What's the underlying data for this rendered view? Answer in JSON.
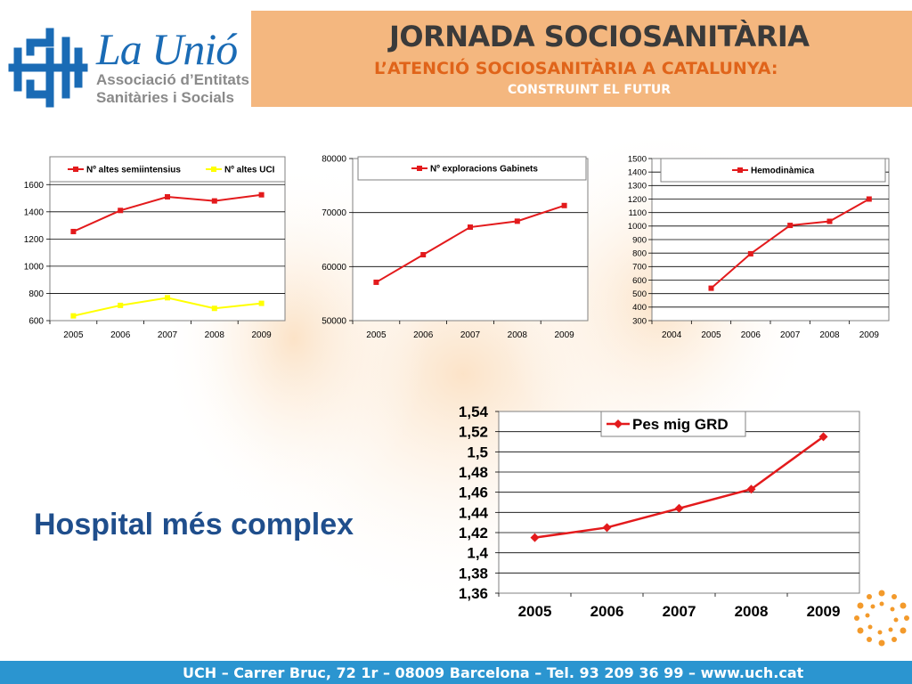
{
  "header": {
    "brand_name": "La Unió",
    "brand_line1": "Associació d’Entitats",
    "brand_line2": "Sanitàries i Socials",
    "title": "JORNADA SOCIOSANITÀRIA",
    "subtitle": "L’ATENCIÓ SOCIOSANITÀRIA A CATALUNYA:",
    "subtitle2": "CONSTRUINT EL FUTUR"
  },
  "slide": {
    "heading": "Hospital més complex"
  },
  "footer": {
    "text": "UCH – Carrer Bruc, 72 1r – 08009 Barcelona – Tel. 93 209 36 99 – www.uch.cat"
  },
  "colors": {
    "accent": "#e0641a",
    "header_band": "#f4b77f",
    "footer": "#2b95d0",
    "brand_blue": "#1a6bb5",
    "series_red": "#e31a1c",
    "series_yellow": "#ffff00"
  },
  "chart_data": [
    {
      "type": "line",
      "x": [
        "2005",
        "2006",
        "2007",
        "2008",
        "2009"
      ],
      "series": [
        {
          "name": "Nº altes semiintensius",
          "color": "#e31a1c",
          "values": [
            1255,
            1410,
            1510,
            1480,
            1525
          ]
        },
        {
          "name": "Nº altes UCI",
          "color": "#ffff00",
          "values": [
            635,
            712,
            768,
            690,
            727
          ]
        }
      ],
      "ylim": [
        600,
        1700
      ],
      "yticks": [
        "600",
        "800",
        "1000",
        "1200",
        "1400",
        "1600"
      ],
      "legend": "top",
      "grid": true
    },
    {
      "type": "line",
      "x": [
        "2005",
        "2006",
        "2007",
        "2008",
        "2009"
      ],
      "series": [
        {
          "name": "Nº exploracions Gabinets",
          "color": "#e31a1c",
          "values": [
            57100,
            62200,
            67300,
            68400,
            71300
          ]
        }
      ],
      "ylim": [
        50000,
        80000
      ],
      "yticks": [
        "50000",
        "60000",
        "70000",
        "80000"
      ],
      "legend": "top",
      "grid": true
    },
    {
      "type": "line",
      "x": [
        "2004",
        "2005",
        "2006",
        "2007",
        "2008",
        "2009"
      ],
      "series": [
        {
          "name": "Hemodinàmica",
          "color": "#e31a1c",
          "values": [
            null,
            540,
            795,
            1005,
            1035,
            1200
          ]
        }
      ],
      "ylim": [
        300,
        1500
      ],
      "yticks": [
        "300",
        "400",
        "500",
        "600",
        "700",
        "800",
        "900",
        "1000",
        "1100",
        "1200",
        "1300",
        "1400",
        "1500"
      ],
      "legend": "top",
      "grid": true
    },
    {
      "type": "line",
      "x": [
        "2005",
        "2006",
        "2007",
        "2008",
        "2009"
      ],
      "series": [
        {
          "name": "Pes mig GRD",
          "color": "#e31a1c",
          "values": [
            1.415,
            1.425,
            1.444,
            1.463,
            1.515
          ]
        }
      ],
      "ylim": [
        1.36,
        1.54
      ],
      "yticks": [
        "1,36",
        "1,38",
        "1,4",
        "1,42",
        "1,44",
        "1,46",
        "1,48",
        "1,5",
        "1,52",
        "1,54"
      ],
      "legend": "top",
      "grid": true
    }
  ]
}
